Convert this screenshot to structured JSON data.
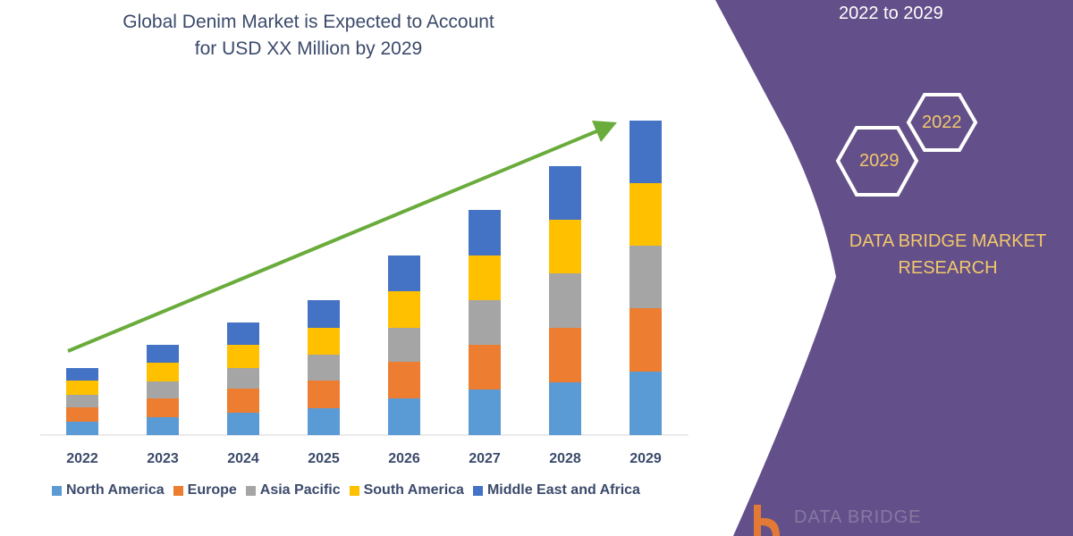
{
  "title_lines": [
    "Global Denim Market is Expected to Account",
    "for USD XX Million by 2029"
  ],
  "side_panel": {
    "period_text": "2022 to 2029",
    "hex_left": "2029",
    "hex_right": "2022",
    "brand_lines": [
      "DATA BRIDGE MARKET",
      "RESEARCH"
    ],
    "logo_text": "DATA BRIDGE",
    "panel_color": "#634f8a",
    "accent_color": "#f3c86a"
  },
  "chart_data": {
    "type": "bar",
    "stacked": true,
    "title": "Global Denim Market is Expected to Account for USD XX Million by 2029",
    "categories": [
      "2022",
      "2023",
      "2024",
      "2025",
      "2026",
      "2027",
      "2028",
      "2029"
    ],
    "y_axis_shown": false,
    "grid": false,
    "legend_position": "bottom",
    "trend_arrow": {
      "color": "#6aac3c",
      "direction": "up"
    },
    "series": [
      {
        "name": "North America",
        "color": "#5b9bd5",
        "values": [
          15,
          20,
          25,
          30,
          41,
          51,
          59,
          71
        ]
      },
      {
        "name": "Europe",
        "color": "#ed7d31",
        "values": [
          16,
          21,
          27,
          31,
          41,
          50,
          61,
          71
        ]
      },
      {
        "name": "Asia Pacific",
        "color": "#a5a5a5",
        "values": [
          14,
          19,
          23,
          29,
          38,
          50,
          61,
          70
        ]
      },
      {
        "name": "South America",
        "color": "#ffc000",
        "values": [
          16,
          21,
          26,
          30,
          41,
          50,
          60,
          70
        ]
      },
      {
        "name": "Middle East and Africa",
        "color": "#4472c4",
        "values": [
          14,
          20,
          25,
          31,
          40,
          51,
          60,
          70
        ]
      }
    ]
  }
}
